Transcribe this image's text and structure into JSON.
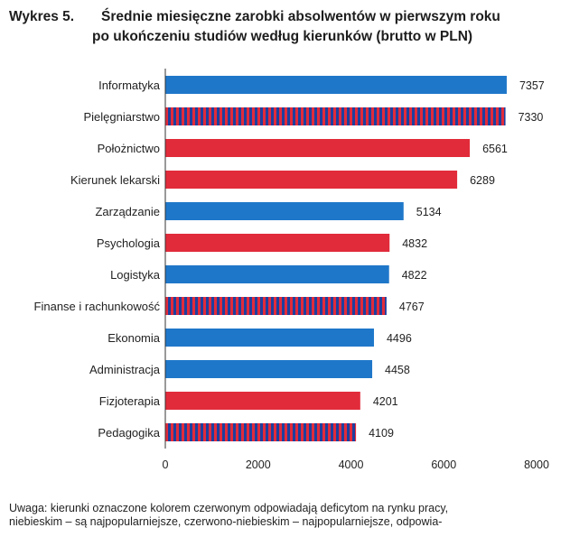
{
  "figure": {
    "label": "Wykres 5.",
    "title_line1": "Średnie miesięczne zarobki absolwentów w pierwszym roku",
    "title_line2": "po ukończeniu studiów według kierunków (brutto w PLN)"
  },
  "note": {
    "line1": "Uwaga: kierunki oznaczone kolorem czerwonym odpowiadają deficytom na rynku pracy,",
    "line2": "niebieskim – są najpopularniejsze, czerwono-niebieskim – najpopularniejsze, odpowia-"
  },
  "colors": {
    "blue": "#1f77c9",
    "red": "#e12b3b",
    "axis": "#333333"
  },
  "chart_data": {
    "type": "bar",
    "orientation": "horizontal",
    "categories": [
      "Informatyka",
      "Pielęgniarstwo",
      "Położnictwo",
      "Kierunek lekarski",
      "Zarządzanie",
      "Psychologia",
      "Logistyka",
      "Finanse i rachunkowość",
      "Ekonomia",
      "Administracja",
      "Fizjoterapia",
      "Pedagogika"
    ],
    "values": [
      7357,
      7330,
      6561,
      6289,
      5134,
      4832,
      4822,
      4767,
      4496,
      4458,
      4201,
      4109
    ],
    "bar_colors": [
      "blue",
      "striped",
      "red",
      "red",
      "blue",
      "red",
      "blue",
      "striped",
      "blue",
      "blue",
      "red",
      "striped"
    ],
    "xlim": [
      0,
      8000
    ],
    "xticks": [
      "0",
      "2000",
      "4000",
      "6000",
      "8000"
    ],
    "grid": false,
    "legend": "none"
  }
}
